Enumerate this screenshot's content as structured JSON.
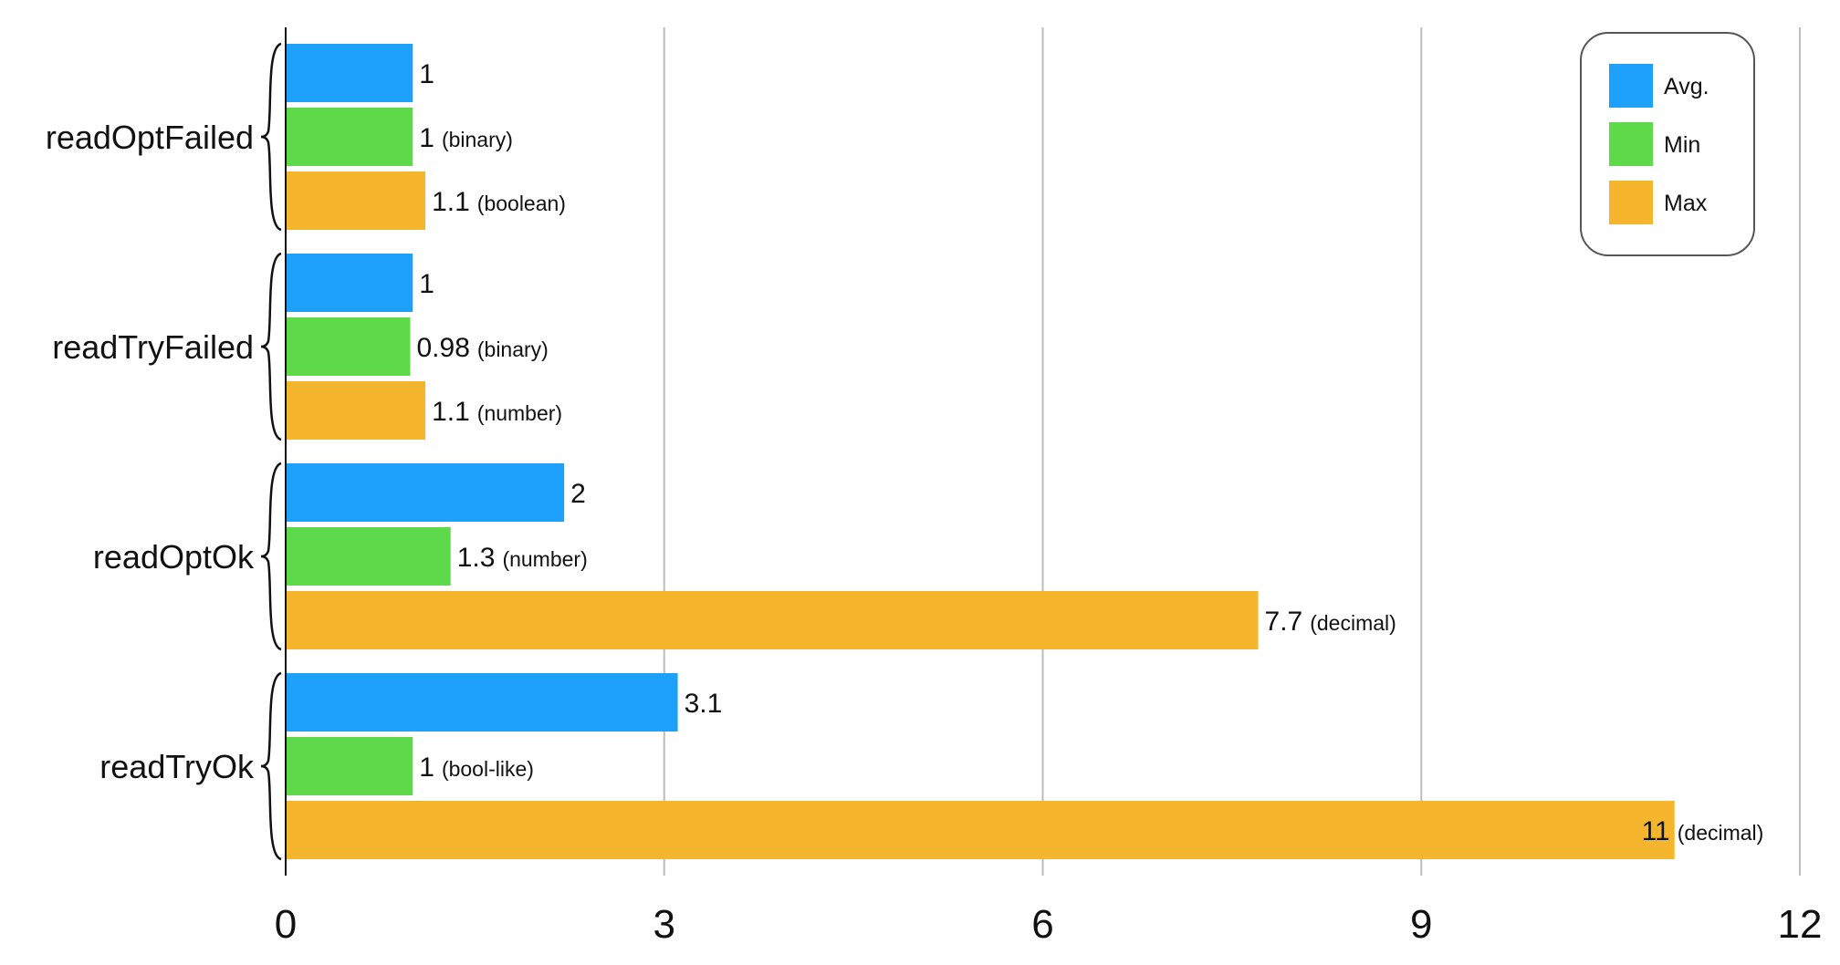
{
  "chart_data": {
    "type": "bar",
    "orientation": "horizontal",
    "title": "",
    "xlabel": "",
    "ylabel": "",
    "xlim": [
      0,
      12
    ],
    "x_ticks": [
      0,
      3,
      6,
      9,
      12
    ],
    "grid": true,
    "legend_position": "top-right",
    "categories": [
      "readOptFailed",
      "readTryFailed",
      "readOptOk",
      "readTryOk"
    ],
    "series": [
      {
        "name": "Avg.",
        "color": "#1DA1FA",
        "values": [
          1,
          1,
          2.2,
          3.1
        ],
        "labels": [
          "1",
          "1",
          "2",
          "3.1"
        ],
        "notes": [
          "",
          "",
          "",
          ""
        ]
      },
      {
        "name": "Min",
        "color": "#5DD94A",
        "values": [
          1,
          0.98,
          1.3,
          1
        ],
        "labels": [
          "1",
          "0.98",
          "1.3",
          "1"
        ],
        "notes": [
          "(binary)",
          "(binary)",
          "(number)",
          "(bool-like)"
        ]
      },
      {
        "name": "Max",
        "color": "#F5B62D",
        "values": [
          1.1,
          1.1,
          7.7,
          11
        ],
        "labels": [
          "1.1",
          "1.1",
          "7.7",
          "11"
        ],
        "notes": [
          "(boolean)",
          "(number)",
          "(decimal)",
          "(decimal)"
        ]
      }
    ]
  }
}
